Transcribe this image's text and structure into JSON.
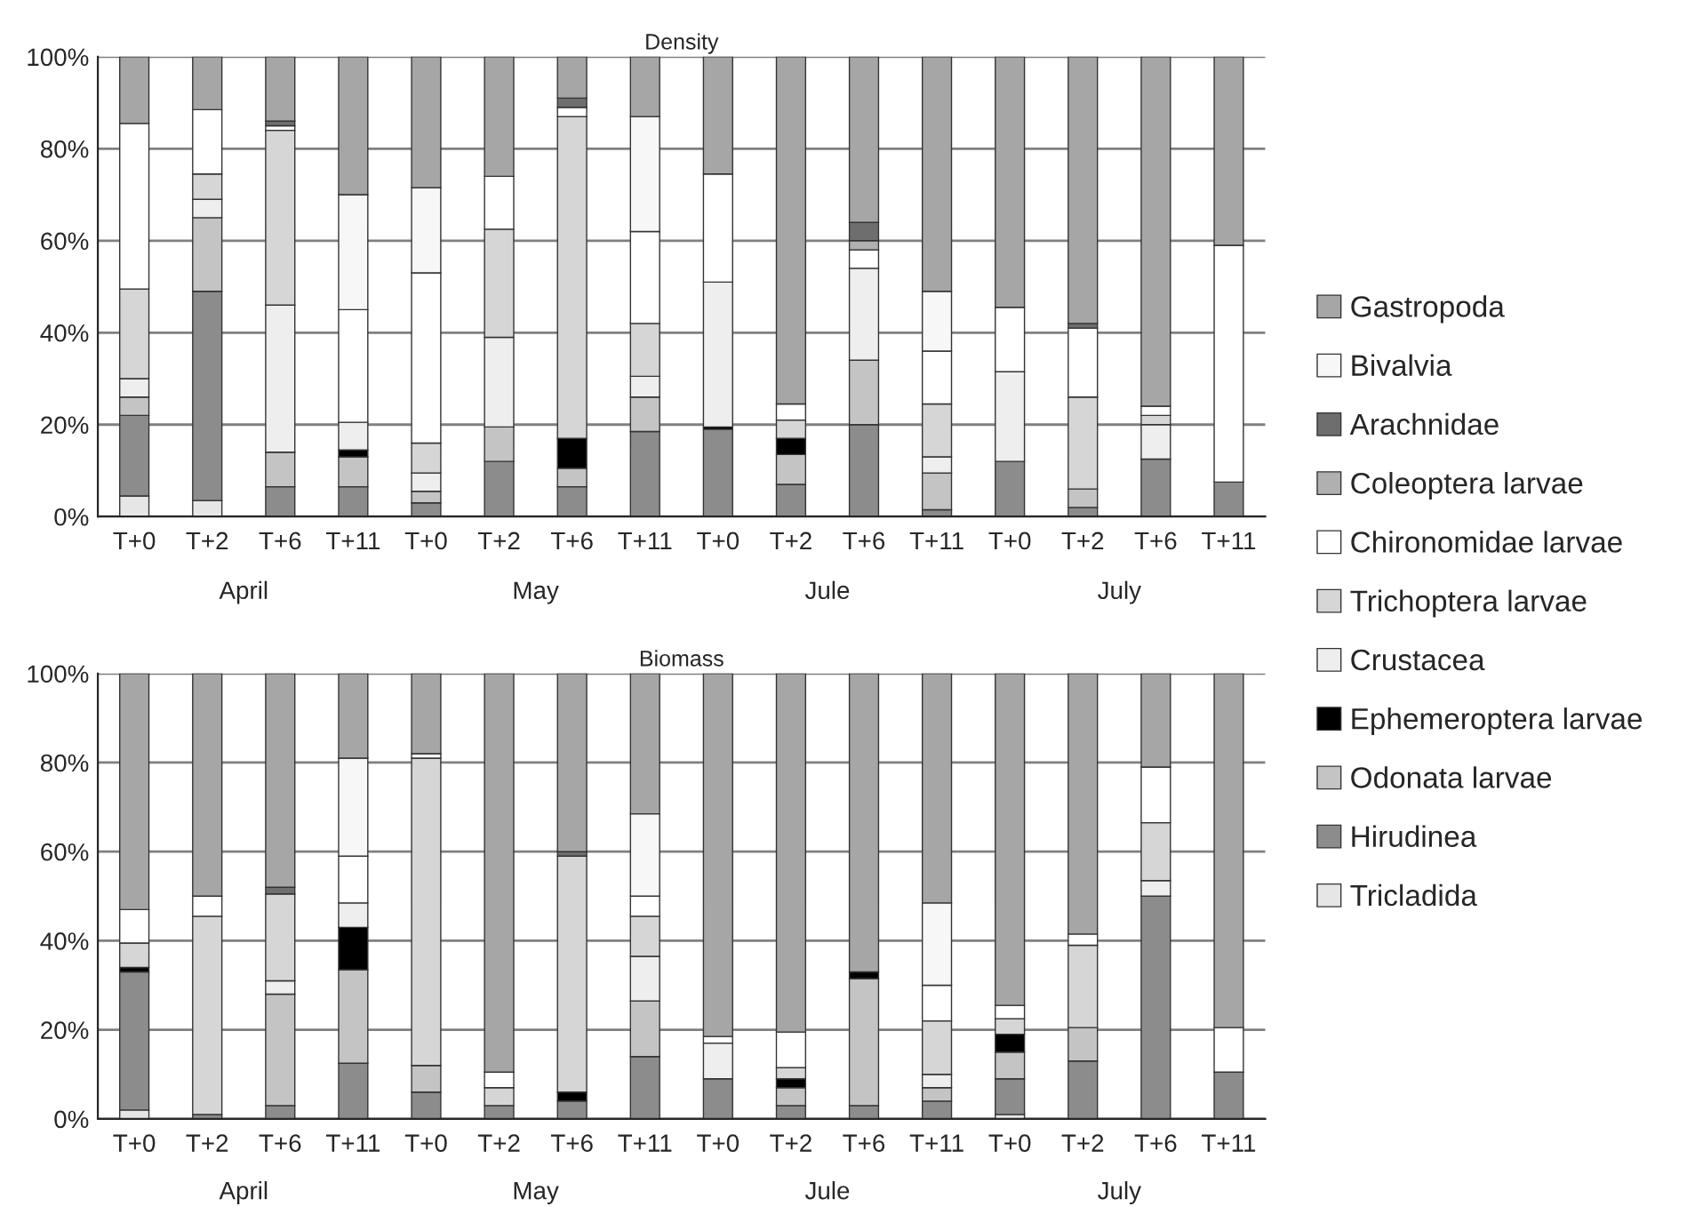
{
  "chart_data": [
    {
      "type": "bar",
      "title": "Density",
      "stacked": true,
      "grid": "y",
      "legend": "right",
      "categories": [
        "T+0",
        "T+2",
        "T+6",
        "T+11",
        "T+0",
        "T+2",
        "T+6",
        "T+11",
        "T+0",
        "T+2",
        "T+6",
        "T+11",
        "T+0",
        "T+2",
        "T+6",
        "T+11"
      ],
      "annotations": [
        "April",
        "May",
        "Jule",
        "July"
      ],
      "ylim": [
        0,
        100
      ],
      "yticks": [
        {
          "value": 0,
          "label": "0%"
        },
        {
          "value": 20,
          "label": "20%"
        },
        {
          "value": 40,
          "label": "40%"
        },
        {
          "value": 60,
          "label": "60%"
        },
        {
          "value": 80,
          "label": "80%"
        },
        {
          "value": 100,
          "label": "100%"
        }
      ],
      "series": [
        {
          "name": "Tricladida",
          "color": "#e6e6e6",
          "values": [
            4.5,
            3.5,
            0,
            0,
            0,
            0,
            0,
            0,
            0,
            0,
            0,
            0,
            0,
            0,
            0,
            0
          ]
        },
        {
          "name": "Hirudinea",
          "color": "#8c8c8c",
          "values": [
            17.5,
            45.5,
            6.5,
            6.5,
            3,
            12,
            6.5,
            18.5,
            19,
            7,
            20,
            1.5,
            12,
            2,
            12.5,
            7.5
          ]
        },
        {
          "name": "Odonata larvae",
          "color": "#c4c4c4",
          "values": [
            4,
            16,
            7.5,
            6.5,
            2.5,
            7.5,
            4,
            7.5,
            0,
            6.5,
            14,
            8,
            0,
            4,
            0,
            0
          ]
        },
        {
          "name": "Ephemeroptera larvae",
          "color": "#000000",
          "values": [
            0,
            0,
            0,
            1.5,
            0,
            0,
            6.5,
            0,
            0.5,
            3.5,
            0,
            0,
            0,
            0,
            0,
            0
          ]
        },
        {
          "name": "Crustacea",
          "color": "#eeeeee",
          "values": [
            4,
            4,
            32,
            6,
            4,
            19.5,
            0,
            4.5,
            31.5,
            0,
            20,
            3.5,
            19.5,
            0,
            7.5,
            0
          ]
        },
        {
          "name": "Trichoptera larvae",
          "color": "#d6d6d6",
          "values": [
            19.5,
            5.5,
            38,
            0,
            6.5,
            23.5,
            70,
            11.5,
            0,
            4,
            0,
            11.5,
            0,
            20,
            2,
            0
          ]
        },
        {
          "name": "Chironomidae larvae",
          "color": "#ffffff",
          "values": [
            36,
            14,
            1,
            24.5,
            37,
            11.5,
            2,
            20,
            23.5,
            3.5,
            4,
            11.5,
            14,
            15,
            2,
            51.5
          ]
        },
        {
          "name": "Coleoptera larvae",
          "color": "#b0b0b0",
          "values": [
            0,
            0,
            0,
            0,
            0,
            0,
            0,
            0,
            0,
            0,
            2,
            0,
            0,
            0,
            0,
            0
          ]
        },
        {
          "name": "Arachnidae",
          "color": "#6e6e6e",
          "values": [
            0,
            0,
            1,
            0,
            0,
            0,
            2,
            0,
            0,
            0,
            4,
            0,
            0,
            1,
            0,
            0
          ]
        },
        {
          "name": "Bivalvia",
          "color": "#f7f7f7",
          "values": [
            0,
            0,
            0,
            25,
            18.5,
            0,
            0,
            25,
            0,
            0,
            0,
            13,
            0,
            0,
            0,
            0
          ]
        },
        {
          "name": "Gastropoda",
          "color": "#a6a6a6",
          "values": [
            14.5,
            11.5,
            14,
            30,
            28.5,
            26,
            9,
            13,
            25.5,
            75.5,
            36,
            51,
            54.5,
            58,
            76,
            41
          ]
        }
      ]
    },
    {
      "type": "bar",
      "title": "Biomass",
      "stacked": true,
      "grid": "y",
      "categories": [
        "T+0",
        "T+2",
        "T+6",
        "T+11",
        "T+0",
        "T+2",
        "T+6",
        "T+11",
        "T+0",
        "T+2",
        "T+6",
        "T+11",
        "T+0",
        "T+2",
        "T+6",
        "T+11"
      ],
      "annotations": [
        "April",
        "May",
        "Jule",
        "July"
      ],
      "ylim": [
        0,
        100
      ],
      "yticks": [
        {
          "value": 0,
          "label": "0%"
        },
        {
          "value": 20,
          "label": "20%"
        },
        {
          "value": 40,
          "label": "40%"
        },
        {
          "value": 60,
          "label": "60%"
        },
        {
          "value": 80,
          "label": "80%"
        },
        {
          "value": 100,
          "label": "100%"
        }
      ],
      "series": [
        {
          "color": "#e6e6e6",
          "values": [
            2,
            0,
            0,
            0,
            0,
            0,
            0,
            0,
            0,
            0,
            0,
            0,
            1,
            0,
            0,
            0
          ]
        },
        {
          "color": "#8c8c8c",
          "values": [
            31,
            1,
            3,
            12.5,
            6,
            3,
            4,
            14,
            9,
            3,
            3,
            4,
            8,
            13,
            50,
            10.5
          ]
        },
        {
          "color": "#c4c4c4",
          "values": [
            0,
            0,
            25,
            21,
            6,
            0,
            0,
            12.5,
            0,
            4,
            28.5,
            3,
            6,
            7.5,
            0,
            0
          ]
        },
        {
          "color": "#000000",
          "values": [
            1,
            0,
            0,
            9.5,
            0,
            0,
            2,
            0,
            0,
            2,
            1.5,
            0,
            4,
            0,
            0,
            0
          ]
        },
        {
          "color": "#eeeeee",
          "values": [
            0,
            0,
            3,
            5.5,
            0,
            0,
            0,
            10,
            8,
            0,
            0,
            3,
            0,
            0,
            3.5,
            0
          ]
        },
        {
          "color": "#d6d6d6",
          "values": [
            5.5,
            44.5,
            19.5,
            0,
            69,
            4,
            53,
            9,
            0,
            2.5,
            0,
            12,
            3.5,
            18.5,
            13,
            0
          ]
        },
        {
          "color": "#ffffff",
          "values": [
            7.5,
            4.5,
            0,
            10.5,
            1,
            3.5,
            0,
            4.5,
            1.5,
            8,
            0,
            8,
            3,
            2.5,
            12.5,
            10
          ]
        },
        {
          "color": "#b0b0b0",
          "values": [
            0,
            0,
            0,
            0,
            0,
            0,
            0,
            0,
            0,
            0,
            0,
            0,
            0,
            0,
            0,
            0
          ]
        },
        {
          "color": "#6e6e6e",
          "values": [
            0,
            0,
            1.5,
            0,
            0,
            0,
            1,
            0,
            0,
            0,
            0,
            0,
            0,
            0,
            0,
            0
          ]
        },
        {
          "color": "#f7f7f7",
          "values": [
            0,
            0,
            0,
            22,
            0,
            0,
            0,
            18.5,
            0,
            0,
            0,
            18.5,
            0,
            0,
            0,
            0
          ]
        },
        {
          "color": "#a6a6a6",
          "values": [
            53,
            50,
            48,
            19,
            18,
            89.5,
            40,
            31.5,
            81.5,
            80.5,
            67,
            51.5,
            74.5,
            58.5,
            21,
            79.5
          ]
        }
      ]
    }
  ]
}
